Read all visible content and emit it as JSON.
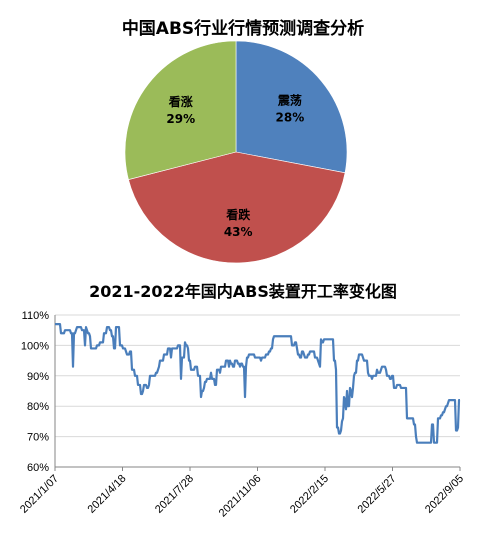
{
  "chart_data": [
    {
      "type": "pie",
      "title": "中国ABS行业行情预测调查分析",
      "slices": [
        {
          "label": "震荡",
          "value": 28,
          "value_label": "28%",
          "color": "#4f81bd"
        },
        {
          "label": "看跌",
          "value": 43,
          "value_label": "43%",
          "color": "#c0504d"
        },
        {
          "label": "看涨",
          "value": 29,
          "value_label": "29%",
          "color": "#9bbb59"
        }
      ]
    },
    {
      "type": "line",
      "title": "2021-2022年国内ABS装置开工率变化图",
      "xlabel": "",
      "ylabel": "",
      "x_tick_labels": [
        "2021/1/07",
        "2021/4/18",
        "2021/7/28",
        "2021/11/06",
        "2022/2/15",
        "2022/5/27",
        "2022/9/05"
      ],
      "y_tick_labels": [
        "60%",
        "70%",
        "80%",
        "90%",
        "100%",
        "110%"
      ],
      "ylim": [
        60,
        110
      ],
      "grid": "horizontal",
      "color": "#4a7ebb",
      "series": [
        {
          "values": [
            107,
            107,
            107,
            107,
            107,
            107,
            104,
            104,
            104,
            104,
            105,
            105,
            105,
            105,
            105,
            105,
            104,
            104,
            93,
            104,
            104,
            105,
            106,
            106,
            106,
            106,
            106,
            105,
            105,
            105,
            100,
            106,
            105,
            104,
            104,
            103,
            99,
            99,
            99,
            99,
            99,
            99,
            100,
            100,
            100,
            101,
            101,
            101,
            101,
            104,
            104,
            104,
            106,
            106,
            106,
            105,
            105,
            103,
            103,
            99,
            99,
            106,
            106,
            106,
            106,
            100,
            100,
            100,
            99,
            99,
            99,
            98,
            97,
            97,
            97,
            98,
            98,
            92,
            92,
            92,
            90,
            90,
            90,
            87,
            87,
            87,
            84,
            84,
            85,
            87,
            87,
            87,
            86,
            86,
            87,
            90,
            90,
            90,
            90,
            90,
            90,
            91,
            91,
            92,
            93,
            95,
            95,
            95,
            95,
            97,
            97,
            97,
            97,
            99,
            99,
            99,
            96,
            99,
            99,
            99,
            99,
            99,
            99,
            100,
            100,
            100,
            89,
            96,
            96,
            96,
            101,
            100,
            100,
            99,
            95,
            95,
            92,
            92,
            92,
            92,
            93,
            93,
            93,
            90,
            90,
            90,
            83,
            85,
            85,
            86,
            88,
            88,
            89,
            89,
            89,
            89,
            91,
            89,
            89,
            89,
            87,
            87,
            92,
            92,
            92,
            91,
            93,
            93,
            93,
            93,
            93,
            95,
            95,
            95,
            93,
            95,
            94,
            94,
            93,
            93,
            95,
            95,
            95,
            94,
            94,
            93,
            94,
            94,
            93,
            93,
            83,
            93,
            96,
            96,
            97,
            97,
            97,
            97,
            97,
            97,
            96,
            96,
            96,
            96,
            96,
            96,
            95,
            96,
            96,
            96,
            96,
            97,
            97,
            97,
            98,
            98,
            99,
            99,
            102,
            103,
            103,
            103,
            103,
            103,
            103,
            103,
            103,
            103,
            103,
            103,
            103,
            103,
            103,
            103,
            103,
            103,
            103,
            100,
            100,
            100,
            101,
            101,
            99,
            97,
            97,
            96,
            96,
            98,
            98,
            97,
            96,
            96,
            96,
            97,
            97,
            98,
            98,
            98,
            98,
            98,
            96,
            96,
            96,
            95,
            94,
            93,
            102,
            101,
            101,
            102,
            102,
            102,
            102,
            102,
            102,
            102,
            102,
            102,
            102,
            95,
            95,
            92,
            73,
            73,
            71,
            71,
            72,
            75,
            76,
            83,
            82,
            79,
            85,
            80,
            80,
            86,
            85,
            83,
            86,
            90,
            91,
            91,
            95,
            95,
            97,
            97,
            97,
            97,
            96,
            95,
            95,
            95,
            95,
            91,
            90,
            90,
            90,
            89,
            90,
            90,
            90,
            90,
            92,
            91,
            91,
            91,
            92,
            93,
            93,
            93,
            93,
            92,
            90,
            90,
            90,
            89,
            89,
            90,
            90,
            86,
            86,
            86,
            87,
            87,
            87,
            87,
            86,
            86,
            86,
            86,
            86,
            86,
            76,
            76,
            76,
            76,
            76,
            76,
            76,
            74,
            74,
            70,
            68,
            68,
            68,
            68,
            68,
            68,
            68,
            68,
            68,
            68,
            68,
            68,
            68,
            68,
            68,
            74,
            74,
            68,
            68,
            68,
            68,
            76,
            76,
            76,
            77,
            77,
            78,
            78,
            79,
            80,
            80,
            81,
            82,
            82,
            82,
            82,
            82,
            82,
            82,
            72,
            72,
            73,
            82,
            82
          ]
        }
      ]
    }
  ]
}
